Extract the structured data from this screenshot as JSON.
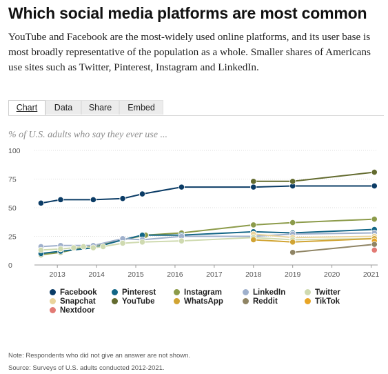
{
  "header": {
    "title": "Which social media platforms are most common",
    "subtitle": "YouTube and Facebook are the most-widely used online platforms, and its user base is most broadly representative of the population as a whole. Smaller shares of Americans use sites such as Twitter, Pinterest, Instagram and LinkedIn."
  },
  "tabs": [
    {
      "label": "Chart",
      "active": true
    },
    {
      "label": "Data",
      "active": false
    },
    {
      "label": "Share",
      "active": false
    },
    {
      "label": "Embed",
      "active": false
    }
  ],
  "footer": {
    "note": "Note: Respondents who did not give an answer are not shown.",
    "source": "Source: Surveys of U.S. adults conducted 2012-2021."
  },
  "chart_data": {
    "type": "line",
    "ylabel": "% of U.S. adults who say they ever use ...",
    "ylim": [
      0,
      100
    ],
    "yticks": [
      0,
      25,
      50,
      75,
      100
    ],
    "xlim": [
      "2012-06",
      "2021-03"
    ],
    "xticks": [
      "2013",
      "2014",
      "2015",
      "2016",
      "2017",
      "2018",
      "2019",
      "2020",
      "2021"
    ],
    "grid": {
      "horizontal": true,
      "vertical": false
    },
    "legend_position": "bottom",
    "series": [
      {
        "name": "Facebook",
        "color": "#0b3c66",
        "points": [
          [
            "2012-08",
            54
          ],
          [
            "2013-02",
            57
          ],
          [
            "2013-12",
            57
          ],
          [
            "2014-09",
            58
          ],
          [
            "2015-03",
            62
          ],
          [
            "2016-03",
            68
          ],
          [
            "2018-01",
            68
          ],
          [
            "2019-01",
            69
          ],
          [
            "2021-02",
            69
          ]
        ]
      },
      {
        "name": "YouTube",
        "color": "#636b2f",
        "points": [
          [
            "2018-01",
            73
          ],
          [
            "2019-01",
            73
          ],
          [
            "2021-02",
            81
          ]
        ]
      },
      {
        "name": "Instagram",
        "color": "#8c9b4a",
        "points": [
          [
            "2012-08",
            9
          ],
          [
            "2013-02",
            11
          ],
          [
            "2015-04",
            26
          ],
          [
            "2016-03",
            28
          ],
          [
            "2018-01",
            35
          ],
          [
            "2019-01",
            37
          ],
          [
            "2021-02",
            40
          ]
        ]
      },
      {
        "name": "Pinterest",
        "color": "#136686",
        "points": [
          [
            "2012-08",
            10
          ],
          [
            "2013-02",
            12
          ],
          [
            "2013-12",
            15
          ],
          [
            "2014-09",
            22
          ],
          [
            "2015-03",
            26
          ],
          [
            "2016-03",
            26
          ],
          [
            "2018-01",
            29
          ],
          [
            "2019-01",
            28
          ],
          [
            "2021-02",
            31
          ]
        ]
      },
      {
        "name": "LinkedIn",
        "color": "#9fb0cc",
        "points": [
          [
            "2012-08",
            16
          ],
          [
            "2013-02",
            17
          ],
          [
            "2013-12",
            17
          ],
          [
            "2014-09",
            23
          ],
          [
            "2015-03",
            22
          ],
          [
            "2016-03",
            25
          ],
          [
            "2018-01",
            25
          ],
          [
            "2019-01",
            27
          ],
          [
            "2021-02",
            28
          ]
        ]
      },
      {
        "name": "Snapchat",
        "color": "#ead49c",
        "points": [
          [
            "2018-01",
            27
          ],
          [
            "2019-01",
            24
          ],
          [
            "2021-02",
            25
          ]
        ]
      },
      {
        "name": "Twitter",
        "color": "#cfdab0",
        "points": [
          [
            "2012-08",
            13
          ],
          [
            "2013-02",
            14
          ],
          [
            "2013-06",
            15
          ],
          [
            "2013-09",
            16
          ],
          [
            "2013-12",
            15
          ],
          [
            "2014-03",
            16
          ],
          [
            "2014-09",
            19
          ],
          [
            "2015-03",
            20
          ],
          [
            "2016-03",
            21
          ],
          [
            "2018-01",
            24
          ],
          [
            "2019-01",
            22
          ],
          [
            "2021-02",
            23
          ]
        ]
      },
      {
        "name": "WhatsApp",
        "color": "#d1a433",
        "points": [
          [
            "2018-01",
            22
          ],
          [
            "2019-01",
            20
          ],
          [
            "2021-02",
            23
          ]
        ]
      },
      {
        "name": "TikTok",
        "color": "#e8a526",
        "points": [
          [
            "2021-02",
            21
          ]
        ]
      },
      {
        "name": "Reddit",
        "color": "#8f8464",
        "points": [
          [
            "2019-01",
            11
          ],
          [
            "2021-02",
            18
          ]
        ]
      },
      {
        "name": "Nextdoor",
        "color": "#e27a74",
        "points": [
          [
            "2021-02",
            13
          ]
        ]
      }
    ]
  }
}
